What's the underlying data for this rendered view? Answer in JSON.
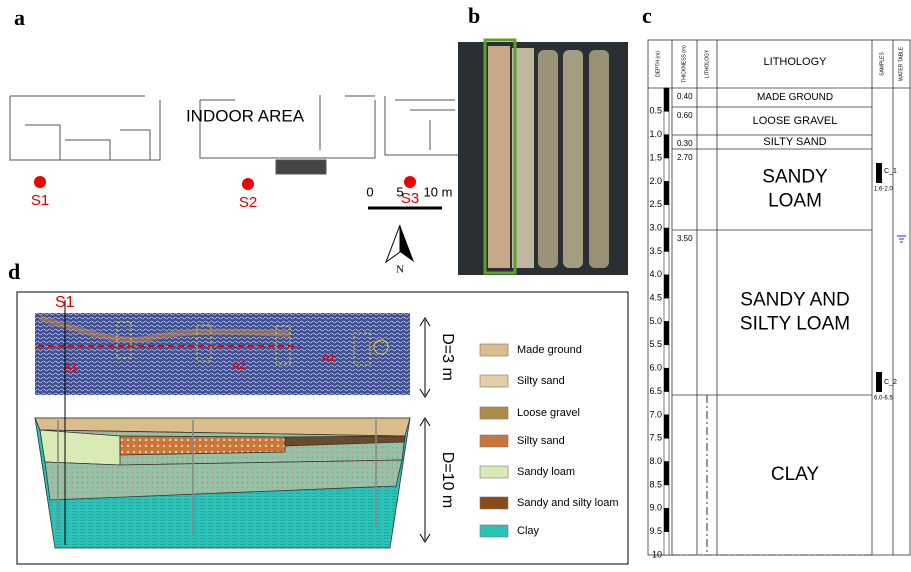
{
  "panels": {
    "a": {
      "label": "a",
      "area_label": "INDOOR AREA",
      "sites": [
        "S1",
        "S2",
        "S3"
      ],
      "scale_labels": [
        "0",
        "5",
        "10 m"
      ],
      "north": "N"
    },
    "b": {
      "label": "b"
    },
    "c": {
      "label": "c",
      "headers": [
        "DEPTH (m)",
        "THICKNESS (m)",
        "LITHOLOGY",
        "LITHOLOGY",
        "SAMPLES",
        "WATER TABLE"
      ],
      "depth_ticks": [
        "0.5",
        "1.0",
        "1.5",
        "2.0",
        "2.5",
        "3.0",
        "3.5",
        "4.0",
        "4.5",
        "5.0",
        "5.5",
        "6.0",
        "6.5",
        "7.0",
        "7.5",
        "8.0",
        "8.5",
        "9.0",
        "9.5",
        "10"
      ],
      "layers": [
        {
          "thickness": "0.40",
          "name_lines": [
            "MADE GROUND"
          ]
        },
        {
          "thickness": "0.60",
          "name_lines": [
            "LOOSE GRAVEL"
          ]
        },
        {
          "thickness": "0.30",
          "name_lines": [
            "SILTY SAND"
          ]
        },
        {
          "thickness": "2.70",
          "name_lines": [
            "SANDY",
            "LOAM"
          ]
        },
        {
          "thickness": "3.50",
          "name_lines": [
            "SANDY AND",
            "SILTY LOAM"
          ]
        },
        {
          "name_lines": [
            "CLAY"
          ]
        }
      ],
      "samples": [
        {
          "name": "C_1",
          "range": "1.6-2.0"
        },
        {
          "name": "C_2",
          "range": "6.0-6.5"
        }
      ]
    },
    "d": {
      "label": "d",
      "site": "S1",
      "depth_labels": [
        "D=3 m",
        "D=10 m"
      ],
      "anomalies": [
        "A1",
        "A2",
        "A1"
      ],
      "legend": [
        "Made ground",
        "Silty sand",
        "Loose gravel",
        "Silty sand",
        "Sandy loam",
        "Sandy and silty loam",
        "Clay"
      ]
    }
  }
}
